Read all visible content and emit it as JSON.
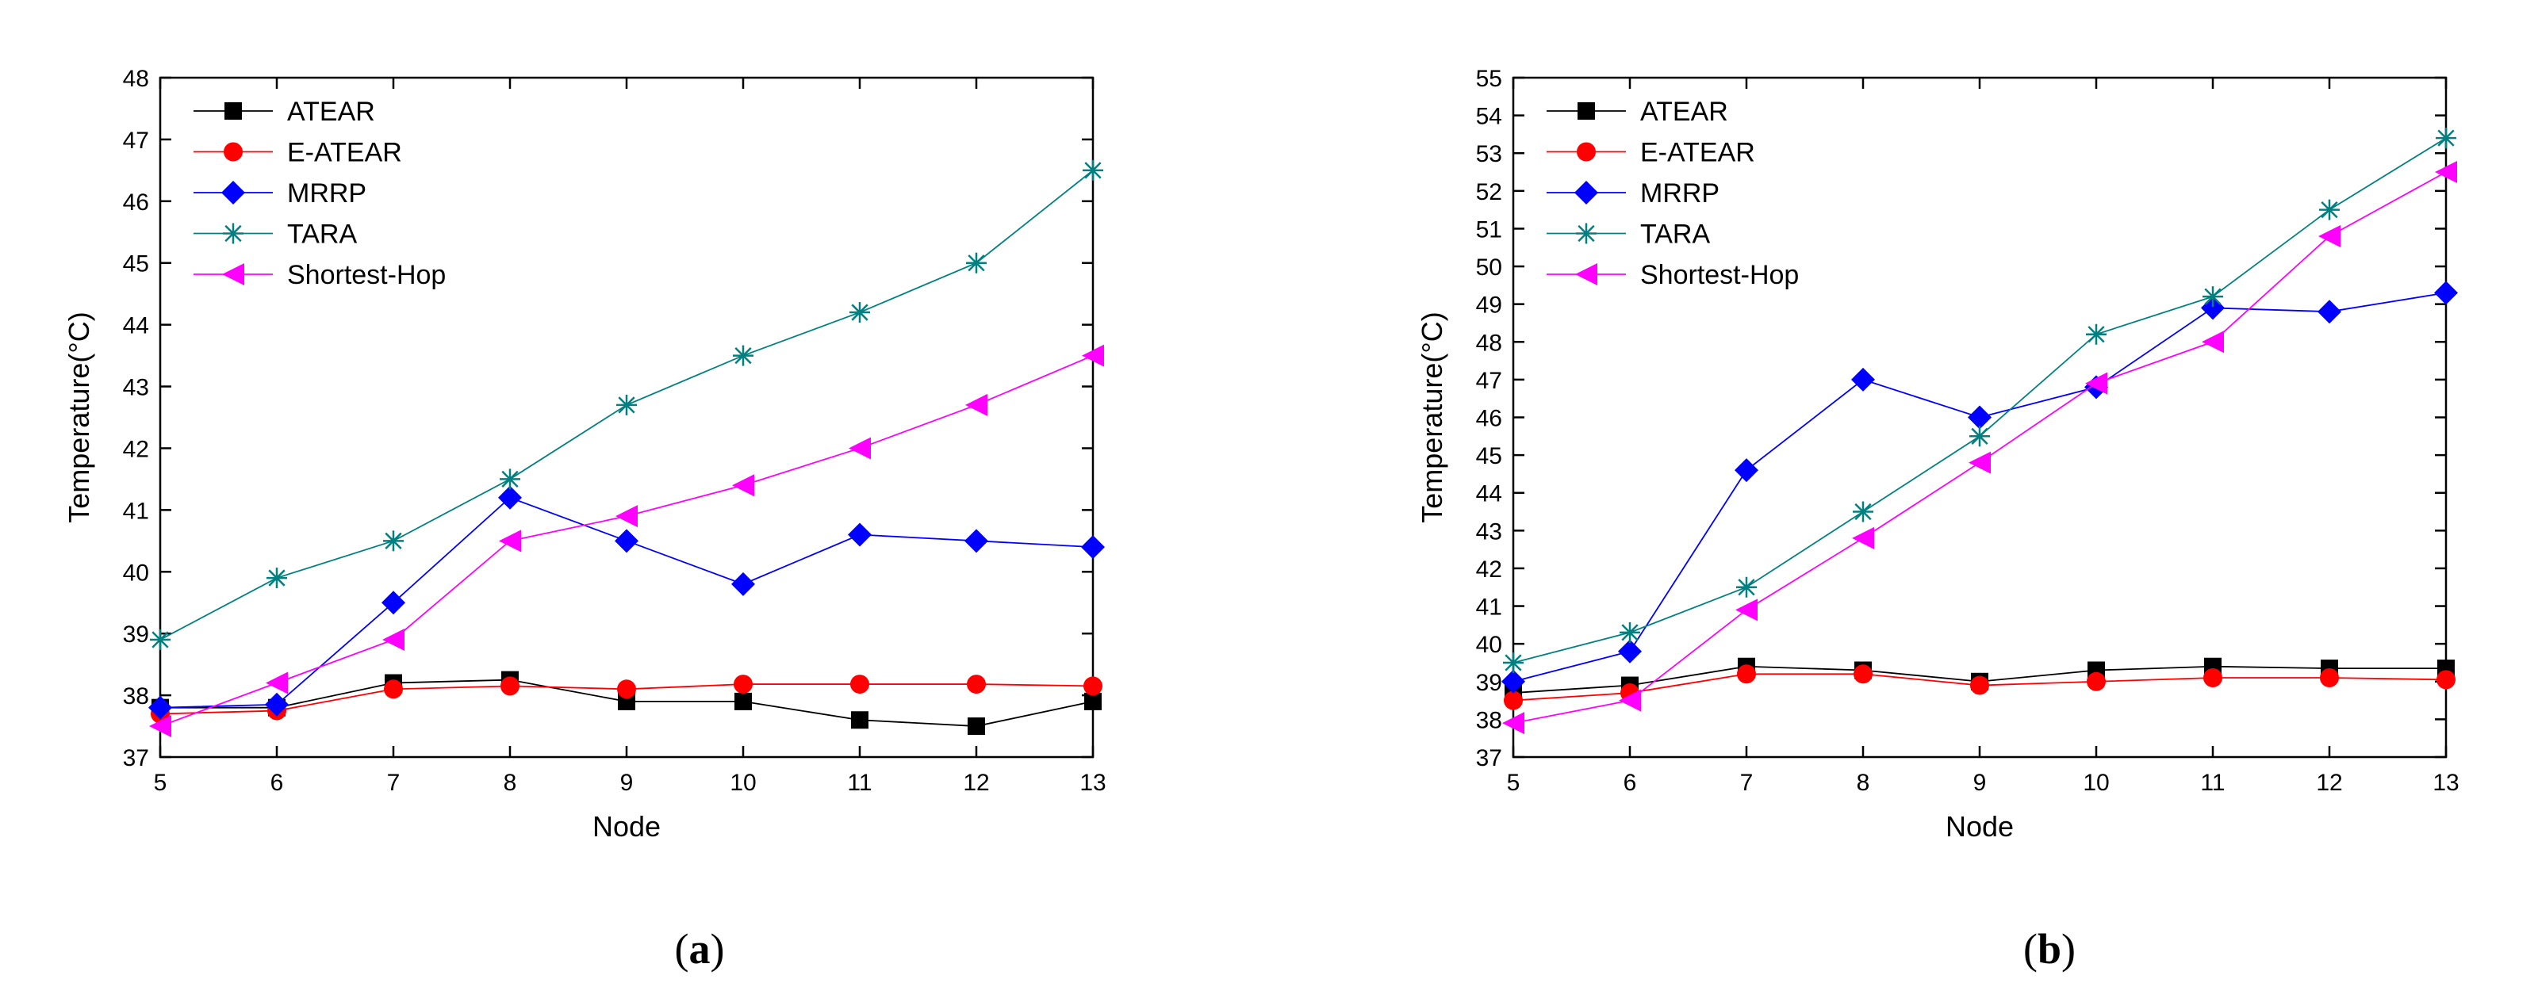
{
  "chart_data": [
    {
      "type": "line",
      "panel_label": "a",
      "title": "",
      "xlabel": "Node",
      "ylabel": "Temperature(°C)",
      "xlim": [
        5,
        13
      ],
      "ylim": [
        37,
        48
      ],
      "xticks": [
        5,
        6,
        7,
        8,
        9,
        10,
        11,
        12,
        13
      ],
      "yticks": [
        37,
        38,
        39,
        40,
        41,
        42,
        43,
        44,
        45,
        46,
        47,
        48
      ],
      "grid": false,
      "legend_position": "top-left",
      "x": [
        5,
        6,
        7,
        8,
        9,
        10,
        11,
        12,
        13
      ],
      "series": [
        {
          "name": "ATEAR",
          "color": "#000000",
          "marker": "square",
          "values": [
            37.8,
            37.8,
            38.2,
            38.25,
            37.9,
            37.9,
            37.6,
            37.5,
            37.9
          ]
        },
        {
          "name": "E-ATEAR",
          "color": "#ff0000",
          "marker": "circle",
          "values": [
            37.7,
            37.75,
            38.1,
            38.15,
            38.1,
            38.18,
            38.18,
            38.18,
            38.15
          ]
        },
        {
          "name": "MRRP",
          "color": "#0000ff",
          "marker": "diamond",
          "values": [
            37.8,
            37.85,
            39.5,
            41.2,
            40.5,
            39.8,
            40.6,
            40.5,
            40.4
          ]
        },
        {
          "name": "TARA",
          "color": "#008080",
          "marker": "asterisk",
          "values": [
            38.9,
            39.9,
            40.5,
            41.5,
            42.7,
            43.5,
            44.2,
            45.0,
            46.5
          ]
        },
        {
          "name": "Shortest-Hop",
          "color": "#ff00ff",
          "marker": "triangle-left",
          "values": [
            37.5,
            38.2,
            38.9,
            40.5,
            40.9,
            41.4,
            42.0,
            42.7,
            43.5
          ]
        }
      ]
    },
    {
      "type": "line",
      "panel_label": "b",
      "title": "",
      "xlabel": "Node",
      "ylabel": "Temperature(°C)",
      "xlim": [
        5,
        13
      ],
      "ylim": [
        37,
        55
      ],
      "xticks": [
        5,
        6,
        7,
        8,
        9,
        10,
        11,
        12,
        13
      ],
      "yticks": [
        37,
        38,
        39,
        40,
        41,
        42,
        43,
        44,
        45,
        46,
        47,
        48,
        49,
        50,
        51,
        52,
        53,
        54,
        55
      ],
      "grid": false,
      "legend_position": "top-left",
      "x": [
        5,
        6,
        7,
        8,
        9,
        10,
        11,
        12,
        13
      ],
      "series": [
        {
          "name": "ATEAR",
          "color": "#000000",
          "marker": "square",
          "values": [
            38.7,
            38.9,
            39.4,
            39.3,
            39.0,
            39.3,
            39.4,
            39.35,
            39.35
          ]
        },
        {
          "name": "E-ATEAR",
          "color": "#ff0000",
          "marker": "circle",
          "values": [
            38.5,
            38.7,
            39.2,
            39.2,
            38.9,
            39.0,
            39.1,
            39.1,
            39.05
          ]
        },
        {
          "name": "MRRP",
          "color": "#0000ff",
          "marker": "diamond",
          "values": [
            39.0,
            39.8,
            44.6,
            47.0,
            46.0,
            46.8,
            48.9,
            48.8,
            49.3
          ]
        },
        {
          "name": "TARA",
          "color": "#008080",
          "marker": "asterisk",
          "values": [
            39.5,
            40.3,
            41.5,
            43.5,
            45.5,
            48.2,
            49.2,
            51.5,
            53.4
          ]
        },
        {
          "name": "Shortest-Hop",
          "color": "#ff00ff",
          "marker": "triangle-left",
          "values": [
            37.9,
            38.5,
            40.9,
            42.8,
            44.8,
            46.9,
            48.0,
            50.8,
            52.5
          ]
        }
      ]
    }
  ]
}
